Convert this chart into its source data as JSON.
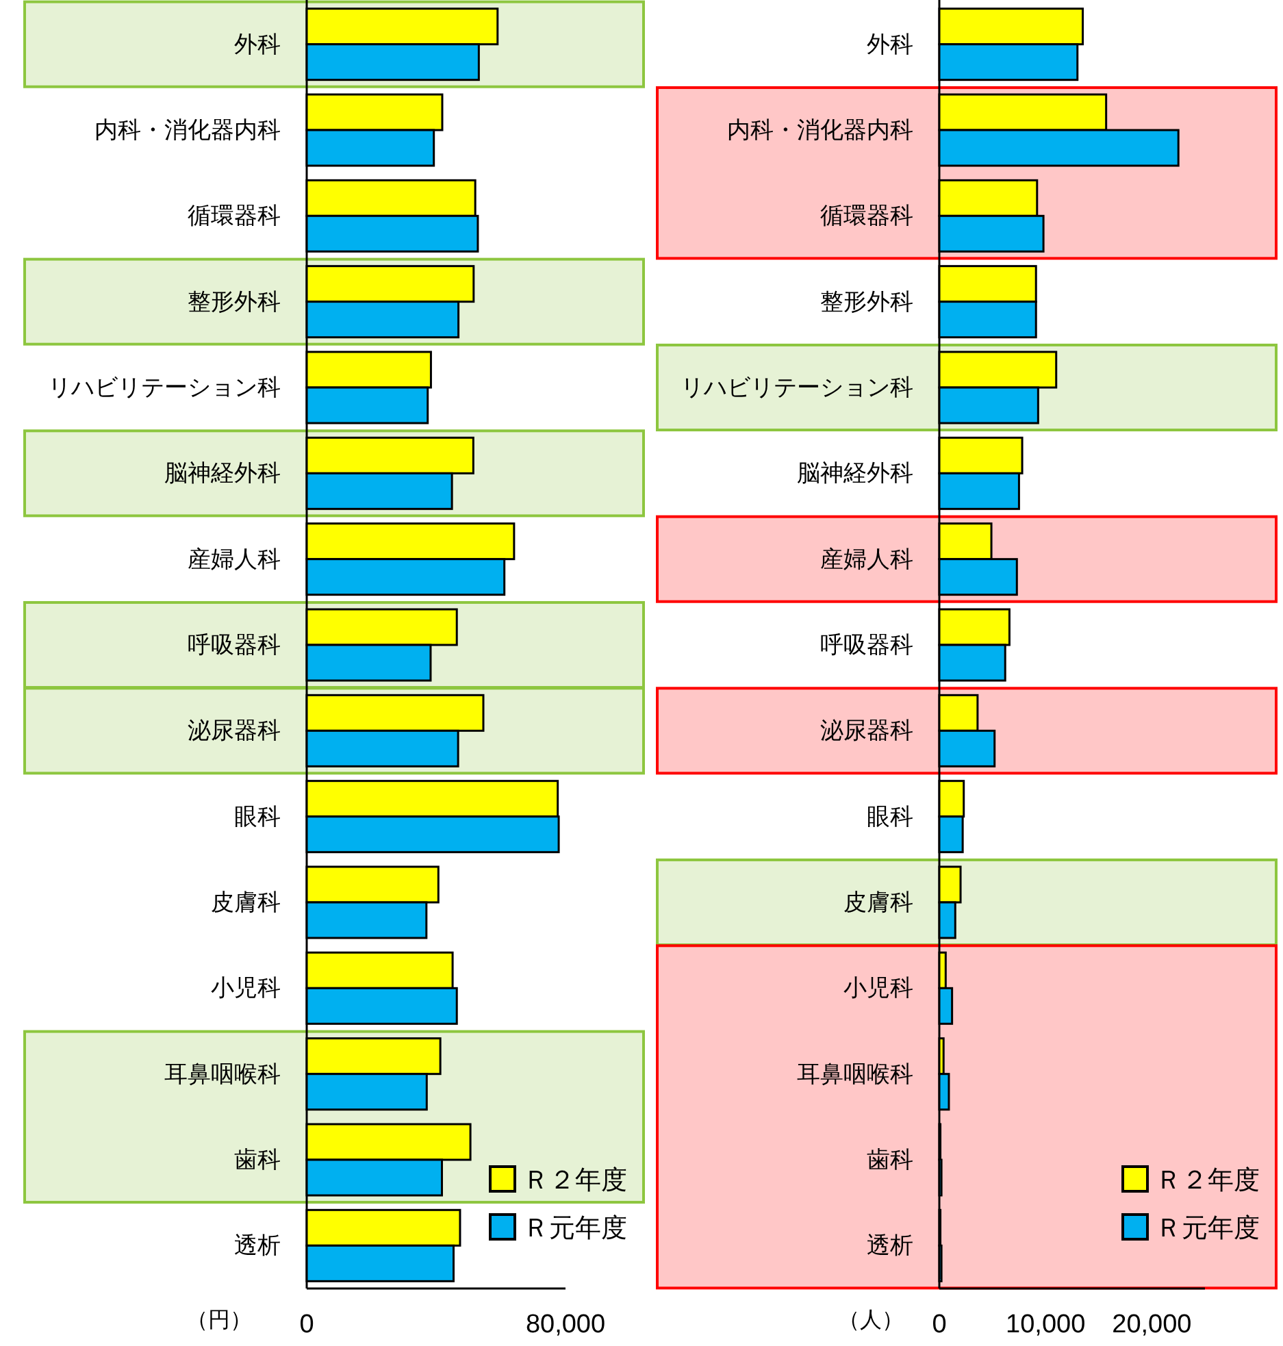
{
  "chart_data": [
    {
      "type": "bar",
      "orientation": "horizontal",
      "xlabel": "（円）",
      "categories": [
        "外科",
        "内科・消化器内科",
        "循環器科",
        "整形外科",
        "リハビリテーション科",
        "脳神経外科",
        "産婦人科",
        "呼吸器科",
        "泌尿器科",
        "眼科",
        "皮膚科",
        "小児科",
        "耳鼻咽喉科",
        "歯科",
        "透析"
      ],
      "series": [
        {
          "name": "Ｒ２年度",
          "color": "#ffff00",
          "values": [
            59000,
            41900,
            52100,
            51600,
            38400,
            51500,
            64100,
            46400,
            54600,
            77600,
            40700,
            45100,
            41300,
            50600,
            47400
          ]
        },
        {
          "name": "Ｒ元年度",
          "color": "#00b0f0",
          "values": [
            53200,
            39300,
            52900,
            46900,
            37400,
            44900,
            61100,
            38300,
            46800,
            77900,
            37000,
            46400,
            37100,
            41800,
            45400
          ]
        }
      ],
      "xlim": [
        0,
        80000
      ],
      "xticks": [
        0,
        {
          "value": 80000,
          "label": "80,000"
        }
      ],
      "legend": "bottom right",
      "bands": [
        {
          "axis": "y",
          "from": "外科",
          "to": "外科",
          "color": "#8dc63f"
        },
        {
          "axis": "y",
          "from": "整形外科",
          "to": "整形外科",
          "color": "#8dc63f"
        },
        {
          "axis": "y",
          "from": "脳神経外科",
          "to": "脳神経外科",
          "color": "#8dc63f"
        },
        {
          "axis": "y",
          "from": "呼吸器科",
          "to": "呼吸器科",
          "color": "#8dc63f"
        },
        {
          "axis": "y",
          "from": "泌尿器科",
          "to": "泌尿器科",
          "color": "#8dc63f"
        },
        {
          "axis": "y",
          "from": "耳鼻咽喉科",
          "to": "歯科",
          "color": "#8dc63f"
        }
      ]
    },
    {
      "type": "bar",
      "orientation": "horizontal",
      "xlabel": "（人）",
      "categories": [
        "外科",
        "内科・消化器内科",
        "循環器科",
        "整形外科",
        "リハビリテーション科",
        "脳神経外科",
        "産婦人科",
        "呼吸器科",
        "泌尿器科",
        "眼科",
        "皮膚科",
        "小児科",
        "耳鼻咽喉科",
        "歯科",
        "透析"
      ],
      "series": [
        {
          "name": "Ｒ２年度",
          "color": "#ffff00",
          "values": [
            13500,
            15700,
            9200,
            9100,
            11000,
            7800,
            4900,
            6600,
            3600,
            2300,
            2000,
            600,
            400,
            100,
            100
          ]
        },
        {
          "name": "Ｒ元年度",
          "color": "#00b0f0",
          "values": [
            13000,
            22500,
            9800,
            9100,
            9300,
            7500,
            7300,
            6200,
            5200,
            2200,
            1500,
            1200,
            900,
            200,
            200
          ]
        }
      ],
      "xlim": [
        0,
        25000
      ],
      "xticks": [
        0,
        {
          "value": 10000,
          "label": "10,000"
        },
        {
          "value": 20000,
          "label": "20,000"
        }
      ],
      "legend": "bottom right",
      "bands": [
        {
          "axis": "y",
          "from": "内科・消化器内科",
          "to": "循環器科",
          "color": "#ff0000"
        },
        {
          "axis": "y",
          "from": "リハビリテーション科",
          "to": "リハビリテーション科",
          "color": "#8dc63f"
        },
        {
          "axis": "y",
          "from": "産婦人科",
          "to": "産婦人科",
          "color": "#ff0000"
        },
        {
          "axis": "y",
          "from": "泌尿器科",
          "to": "泌尿器科",
          "color": "#ff0000"
        },
        {
          "axis": "y",
          "from": "皮膚科",
          "to": "皮膚科",
          "color": "#8dc63f"
        },
        {
          "axis": "y",
          "from": "小児科",
          "to": "透析",
          "color": "#ff0000"
        }
      ]
    }
  ]
}
